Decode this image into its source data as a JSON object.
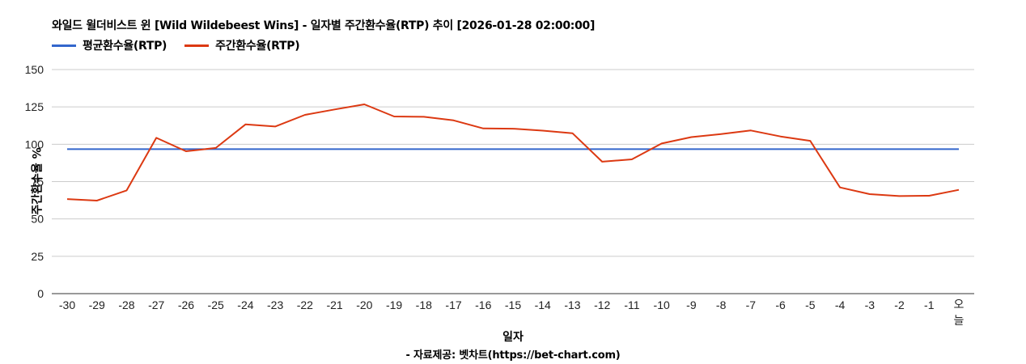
{
  "chart_data": {
    "type": "line",
    "title": "와일드 윌더비스트 윈 [Wild Wildebeest Wins] - 일자별 주간환수율(RTP) 추이 [2026-01-28 02:00:00]",
    "xlabel": "일자",
    "ylabel": "주간환수율 %",
    "source": "- 자료제공: 벳차트(https://bet-chart.com)",
    "ylim": [
      0,
      150
    ],
    "yticks": [
      0,
      25,
      50,
      75,
      100,
      125,
      150
    ],
    "grid": true,
    "legend_position": "top-left",
    "categories": [
      "-30",
      "-29",
      "-28",
      "-27",
      "-26",
      "-25",
      "-24",
      "-23",
      "-22",
      "-21",
      "-20",
      "-19",
      "-18",
      "-17",
      "-16",
      "-15",
      "-14",
      "-13",
      "-12",
      "-11",
      "-10",
      "-9",
      "-8",
      "-7",
      "-6",
      "-5",
      "-4",
      "-3",
      "-2",
      "-1",
      "오늘"
    ],
    "series": [
      {
        "name": "평균환수율(RTP)",
        "color": "#3366cc",
        "values": [
          96.7,
          96.7,
          96.7,
          96.7,
          96.7,
          96.7,
          96.7,
          96.7,
          96.7,
          96.7,
          96.7,
          96.7,
          96.7,
          96.7,
          96.7,
          96.7,
          96.7,
          96.7,
          96.7,
          96.7,
          96.7,
          96.7,
          96.7,
          96.7,
          96.7,
          96.7,
          96.7,
          96.7,
          96.7,
          96.7,
          96.7
        ]
      },
      {
        "name": "주간환수율(RTP)",
        "color": "#dc3912",
        "values": [
          63.3,
          62.3,
          69.1,
          104.3,
          95.3,
          97.5,
          113.3,
          111.9,
          119.7,
          123.3,
          126.7,
          118.6,
          118.4,
          116.0,
          110.6,
          110.4,
          109.1,
          107.4,
          88.3,
          89.9,
          100.5,
          104.8,
          106.8,
          109.2,
          105.2,
          102.3,
          71.1,
          66.6,
          65.3,
          65.5,
          69.5
        ]
      }
    ]
  }
}
